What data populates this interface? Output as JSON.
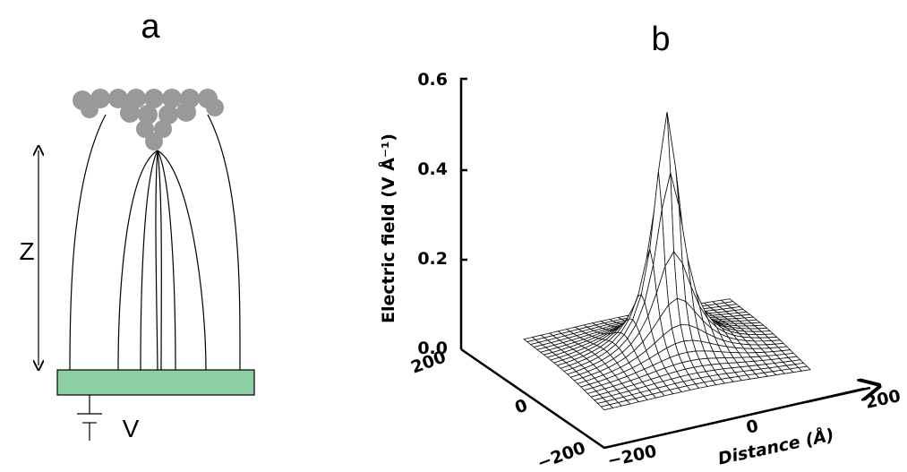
{
  "panel_a": {
    "label": "a",
    "gap_label": "Z",
    "voltage_label": "V"
  },
  "panel_b": {
    "label": "b",
    "vertical_axis_label": "Electric field (V Å⁻¹)",
    "vertical_ticks": [
      "0.0",
      "0.2",
      "0.4",
      "0.6"
    ],
    "depth_ticks": [
      "200",
      "0",
      "−200"
    ],
    "horizontal_ticks": [
      "−200",
      "0",
      "200"
    ],
    "horizontal_axis_label": "Distance (Å)"
  }
}
